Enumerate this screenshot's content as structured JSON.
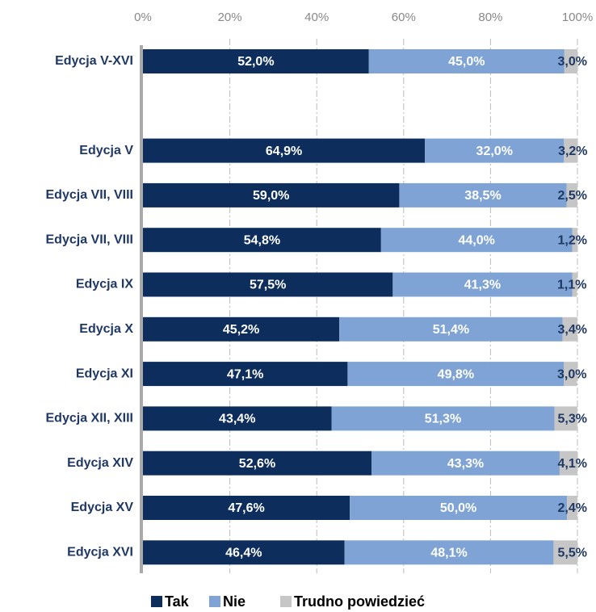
{
  "chart_data": {
    "type": "stacked_bar_horizontal",
    "categories": [
      "Edycja V-XVI",
      null,
      "Edycja V",
      "Edycja VII, VIII",
      "Edycja VII, VIII",
      "Edycja IX",
      "Edycja X",
      "Edycja XI",
      "Edycja XII, XIII",
      "Edycja XIV",
      "Edycja XV",
      "Edycja XVI"
    ],
    "series": [
      {
        "name": "Tak",
        "color": "#0d2e5c",
        "values": [
          52.0,
          null,
          64.9,
          59.0,
          54.8,
          57.5,
          45.2,
          47.1,
          43.4,
          52.6,
          47.6,
          46.4
        ],
        "value_labels": [
          "52,0%",
          null,
          "64,9%",
          "59,0%",
          "54,8%",
          "57,5%",
          "45,2%",
          "47,1%",
          "43,4%",
          "52,6%",
          "47,6%",
          "46,4%"
        ]
      },
      {
        "name": "Nie",
        "color": "#7ea3d4",
        "values": [
          45.0,
          null,
          32.0,
          38.5,
          44.0,
          41.3,
          51.4,
          49.8,
          51.3,
          43.3,
          50.0,
          48.1
        ],
        "value_labels": [
          "45,0%",
          null,
          "32,0%",
          "38,5%",
          "44,0%",
          "41,3%",
          "51,4%",
          "49,8%",
          "51,3%",
          "43,3%",
          "50,0%",
          "48,1%"
        ]
      },
      {
        "name": "Trudno powiedzieć",
        "color": "#c6c6c6",
        "values": [
          3.0,
          null,
          3.2,
          2.5,
          1.2,
          1.1,
          3.4,
          3.0,
          5.3,
          4.1,
          2.4,
          5.5
        ],
        "value_labels": [
          "3,0%",
          null,
          "3,2%",
          "2,5%",
          "1,2%",
          "1,1%",
          "3,4%",
          "3,0%",
          "5,3%",
          "4,1%",
          "2,4%",
          "5,5%"
        ]
      }
    ],
    "xlim": [
      0,
      100
    ],
    "xticks": [
      {
        "value": 0,
        "label": "0%"
      },
      {
        "value": 20,
        "label": "20%"
      },
      {
        "value": 40,
        "label": "40%"
      },
      {
        "value": 60,
        "label": "60%"
      },
      {
        "value": 80,
        "label": "80%"
      },
      {
        "value": 100,
        "label": "100%"
      }
    ],
    "grid": true,
    "legend": "bottom"
  }
}
